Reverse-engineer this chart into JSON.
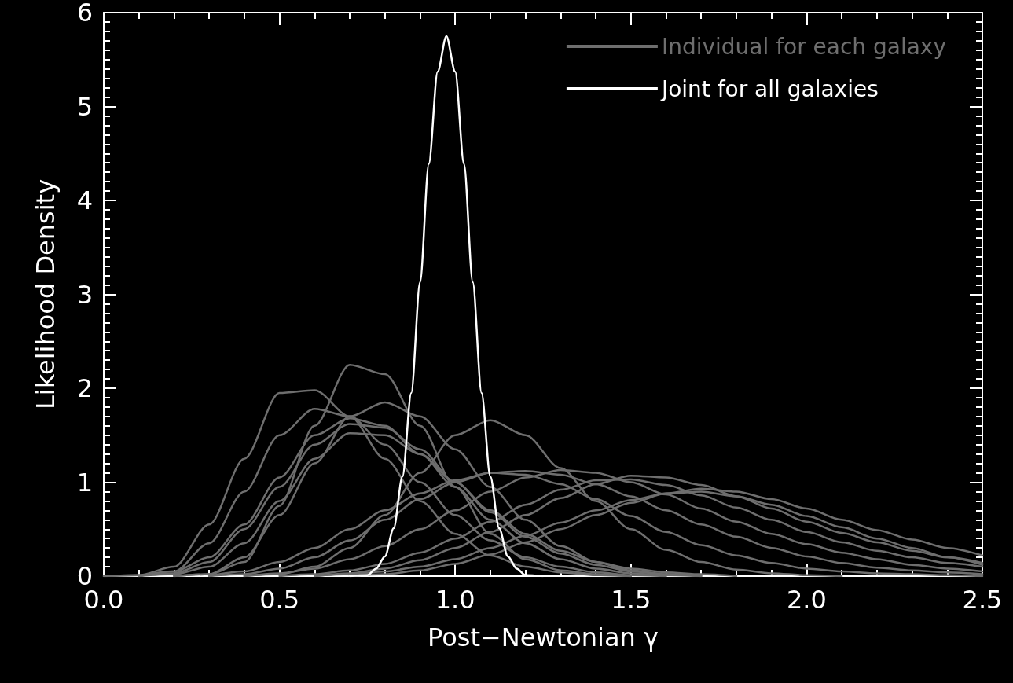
{
  "chart_data": {
    "type": "line",
    "xlabel": "Post−Newtonian γ",
    "ylabel": "Likelihood Density",
    "x": [
      0,
      0.1,
      0.2,
      0.3,
      0.4,
      0.5,
      0.6,
      0.7,
      0.8,
      0.9,
      1.0,
      1.1,
      1.2,
      1.3,
      1.4,
      1.5,
      1.6,
      1.7,
      1.8,
      1.9,
      2.0,
      2.1,
      2.2,
      2.3,
      2.4,
      2.5
    ],
    "series": [
      {
        "name": "Individual for each galaxy",
        "color": "#6e6e6e",
        "values": [
          0,
          0.01,
          0.1,
          0.55,
          1.25,
          1.95,
          1.98,
          1.7,
          1.25,
          0.8,
          0.45,
          0.22,
          0.1,
          0.04,
          0.01,
          0,
          null,
          null,
          null,
          null,
          null,
          null,
          null,
          null,
          null,
          null
        ]
      },
      {
        "color": "#6e6e6e",
        "values": [
          null,
          null,
          0,
          0.02,
          0.15,
          0.75,
          1.6,
          2.25,
          2.15,
          1.6,
          0.95,
          0.45,
          0.18,
          0.06,
          0.02,
          0,
          null,
          null,
          null,
          null,
          null,
          null,
          null,
          null,
          null,
          null
        ]
      },
      {
        "color": "#6e6e6e",
        "values": [
          null,
          0,
          0.05,
          0.35,
          0.9,
          1.5,
          1.78,
          1.7,
          1.4,
          1.0,
          0.65,
          0.38,
          0.2,
          0.1,
          0.04,
          0.01,
          0,
          null,
          null,
          null,
          null,
          null,
          null,
          null,
          null,
          null
        ]
      },
      {
        "color": "#6e6e6e",
        "values": [
          null,
          null,
          0,
          0.02,
          0.2,
          0.65,
          1.2,
          1.7,
          1.85,
          1.7,
          1.35,
          0.95,
          0.6,
          0.32,
          0.15,
          0.06,
          0.02,
          0,
          null,
          null,
          null,
          null,
          null,
          null,
          null,
          null
        ]
      },
      {
        "color": "#6e6e6e",
        "values": [
          null,
          0,
          0.05,
          0.2,
          0.55,
          1.05,
          1.5,
          1.68,
          1.6,
          1.3,
          0.95,
          0.6,
          0.35,
          0.18,
          0.08,
          0.03,
          0.01,
          0,
          null,
          null,
          null,
          null,
          null,
          null,
          null,
          null
        ]
      },
      {
        "color": "#6e6e6e",
        "values": [
          0,
          0.01,
          0.03,
          0.15,
          0.5,
          0.95,
          1.4,
          1.62,
          1.58,
          1.35,
          1.0,
          0.68,
          0.42,
          0.24,
          0.12,
          0.05,
          0.02,
          0,
          null,
          null,
          null,
          null,
          null,
          null,
          null,
          null
        ]
      },
      {
        "color": "#6e6e6e",
        "values": [
          null,
          0,
          0.02,
          0.1,
          0.35,
          0.8,
          1.25,
          1.52,
          1.5,
          1.3,
          1.0,
          0.7,
          0.45,
          0.27,
          0.15,
          0.08,
          0.04,
          0.02,
          0,
          null,
          null,
          null,
          null,
          null,
          null,
          null
        ]
      },
      {
        "color": "#6e6e6e",
        "values": [
          null,
          null,
          null,
          null,
          0,
          0.02,
          0.1,
          0.3,
          0.65,
          1.1,
          1.5,
          1.66,
          1.5,
          1.15,
          0.8,
          0.5,
          0.28,
          0.15,
          0.07,
          0.03,
          0.01,
          0,
          null,
          null,
          null,
          null
        ]
      },
      {
        "color": "#6e6e6e",
        "values": [
          null,
          null,
          null,
          0,
          0.05,
          0.15,
          0.3,
          0.5,
          0.7,
          0.88,
          1.02,
          1.1,
          1.12,
          1.08,
          0.98,
          0.85,
          0.7,
          0.55,
          0.42,
          0.3,
          0.21,
          0.14,
          0.09,
          0.06,
          0.04,
          0.02
        ]
      },
      {
        "color": "#6e6e6e",
        "values": [
          null,
          null,
          null,
          null,
          0,
          0.03,
          0.08,
          0.18,
          0.32,
          0.5,
          0.7,
          0.9,
          1.05,
          1.13,
          1.1,
          1.0,
          0.87,
          0.72,
          0.58,
          0.45,
          0.34,
          0.25,
          0.18,
          0.12,
          0.08,
          0.05
        ]
      },
      {
        "color": "#6e6e6e",
        "values": [
          null,
          null,
          null,
          0,
          0.02,
          0.08,
          0.2,
          0.38,
          0.6,
          0.82,
          1.0,
          1.1,
          1.08,
          0.98,
          0.82,
          0.64,
          0.47,
          0.33,
          0.22,
          0.14,
          0.08,
          0.05,
          0.03,
          0.02,
          0.01,
          0
        ]
      },
      {
        "color": "#6e6e6e",
        "values": [
          null,
          null,
          null,
          null,
          null,
          null,
          0,
          0.03,
          0.08,
          0.17,
          0.3,
          0.47,
          0.65,
          0.83,
          0.98,
          1.07,
          1.05,
          0.97,
          0.85,
          0.72,
          0.58,
          0.46,
          0.36,
          0.27,
          0.2,
          0.14
        ]
      },
      {
        "color": "#6e6e6e",
        "values": [
          null,
          null,
          null,
          null,
          null,
          0,
          0.02,
          0.06,
          0.13,
          0.25,
          0.4,
          0.58,
          0.76,
          0.92,
          1.02,
          1.03,
          0.97,
          0.86,
          0.73,
          0.6,
          0.47,
          0.36,
          0.27,
          0.2,
          0.14,
          0.1
        ]
      },
      {
        "color": "#6e6e6e",
        "values": [
          null,
          null,
          null,
          null,
          null,
          null,
          null,
          0,
          0.02,
          0.06,
          0.13,
          0.23,
          0.36,
          0.5,
          0.65,
          0.78,
          0.88,
          0.93,
          0.9,
          0.82,
          0.72,
          0.6,
          0.49,
          0.39,
          0.3,
          0.22
        ]
      },
      {
        "color": "#6e6e6e",
        "values": [
          null,
          null,
          null,
          null,
          null,
          null,
          0,
          0.02,
          0.05,
          0.1,
          0.18,
          0.3,
          0.43,
          0.57,
          0.7,
          0.81,
          0.88,
          0.9,
          0.85,
          0.76,
          0.64,
          0.52,
          0.4,
          0.3,
          0.2,
          0.12
        ]
      },
      {
        "name": "Joint for all galaxies",
        "color": "#ffffff",
        "x": [
          0.7,
          0.75,
          0.775,
          0.8,
          0.825,
          0.85,
          0.875,
          0.9,
          0.925,
          0.95,
          0.975,
          1.0,
          1.025,
          1.05,
          1.075,
          1.1,
          1.125,
          1.15,
          1.175,
          1.2,
          1.25
        ],
        "values": [
          0,
          0.01,
          0.08,
          0.21,
          0.51,
          1.06,
          1.95,
          3.13,
          4.39,
          5.37,
          5.75,
          5.37,
          4.39,
          3.13,
          1.95,
          1.06,
          0.51,
          0.21,
          0.08,
          0.01,
          0
        ]
      }
    ],
    "xlim": [
      0,
      2.5
    ],
    "xticks": [
      {
        "value": 0,
        "label": "0.0"
      },
      {
        "value": 0.5,
        "label": "0.5"
      },
      {
        "value": 1,
        "label": "1.0"
      },
      {
        "value": 1.5,
        "label": "1.5"
      },
      {
        "value": 2,
        "label": "2.0"
      },
      {
        "value": 2.5,
        "label": "2.5"
      }
    ],
    "ylim": [
      0,
      6
    ],
    "yticks": [
      0,
      1,
      2,
      3,
      4,
      5,
      6
    ],
    "grid": false,
    "legend": "top right",
    "marker": "none",
    "line_style": "solid"
  }
}
